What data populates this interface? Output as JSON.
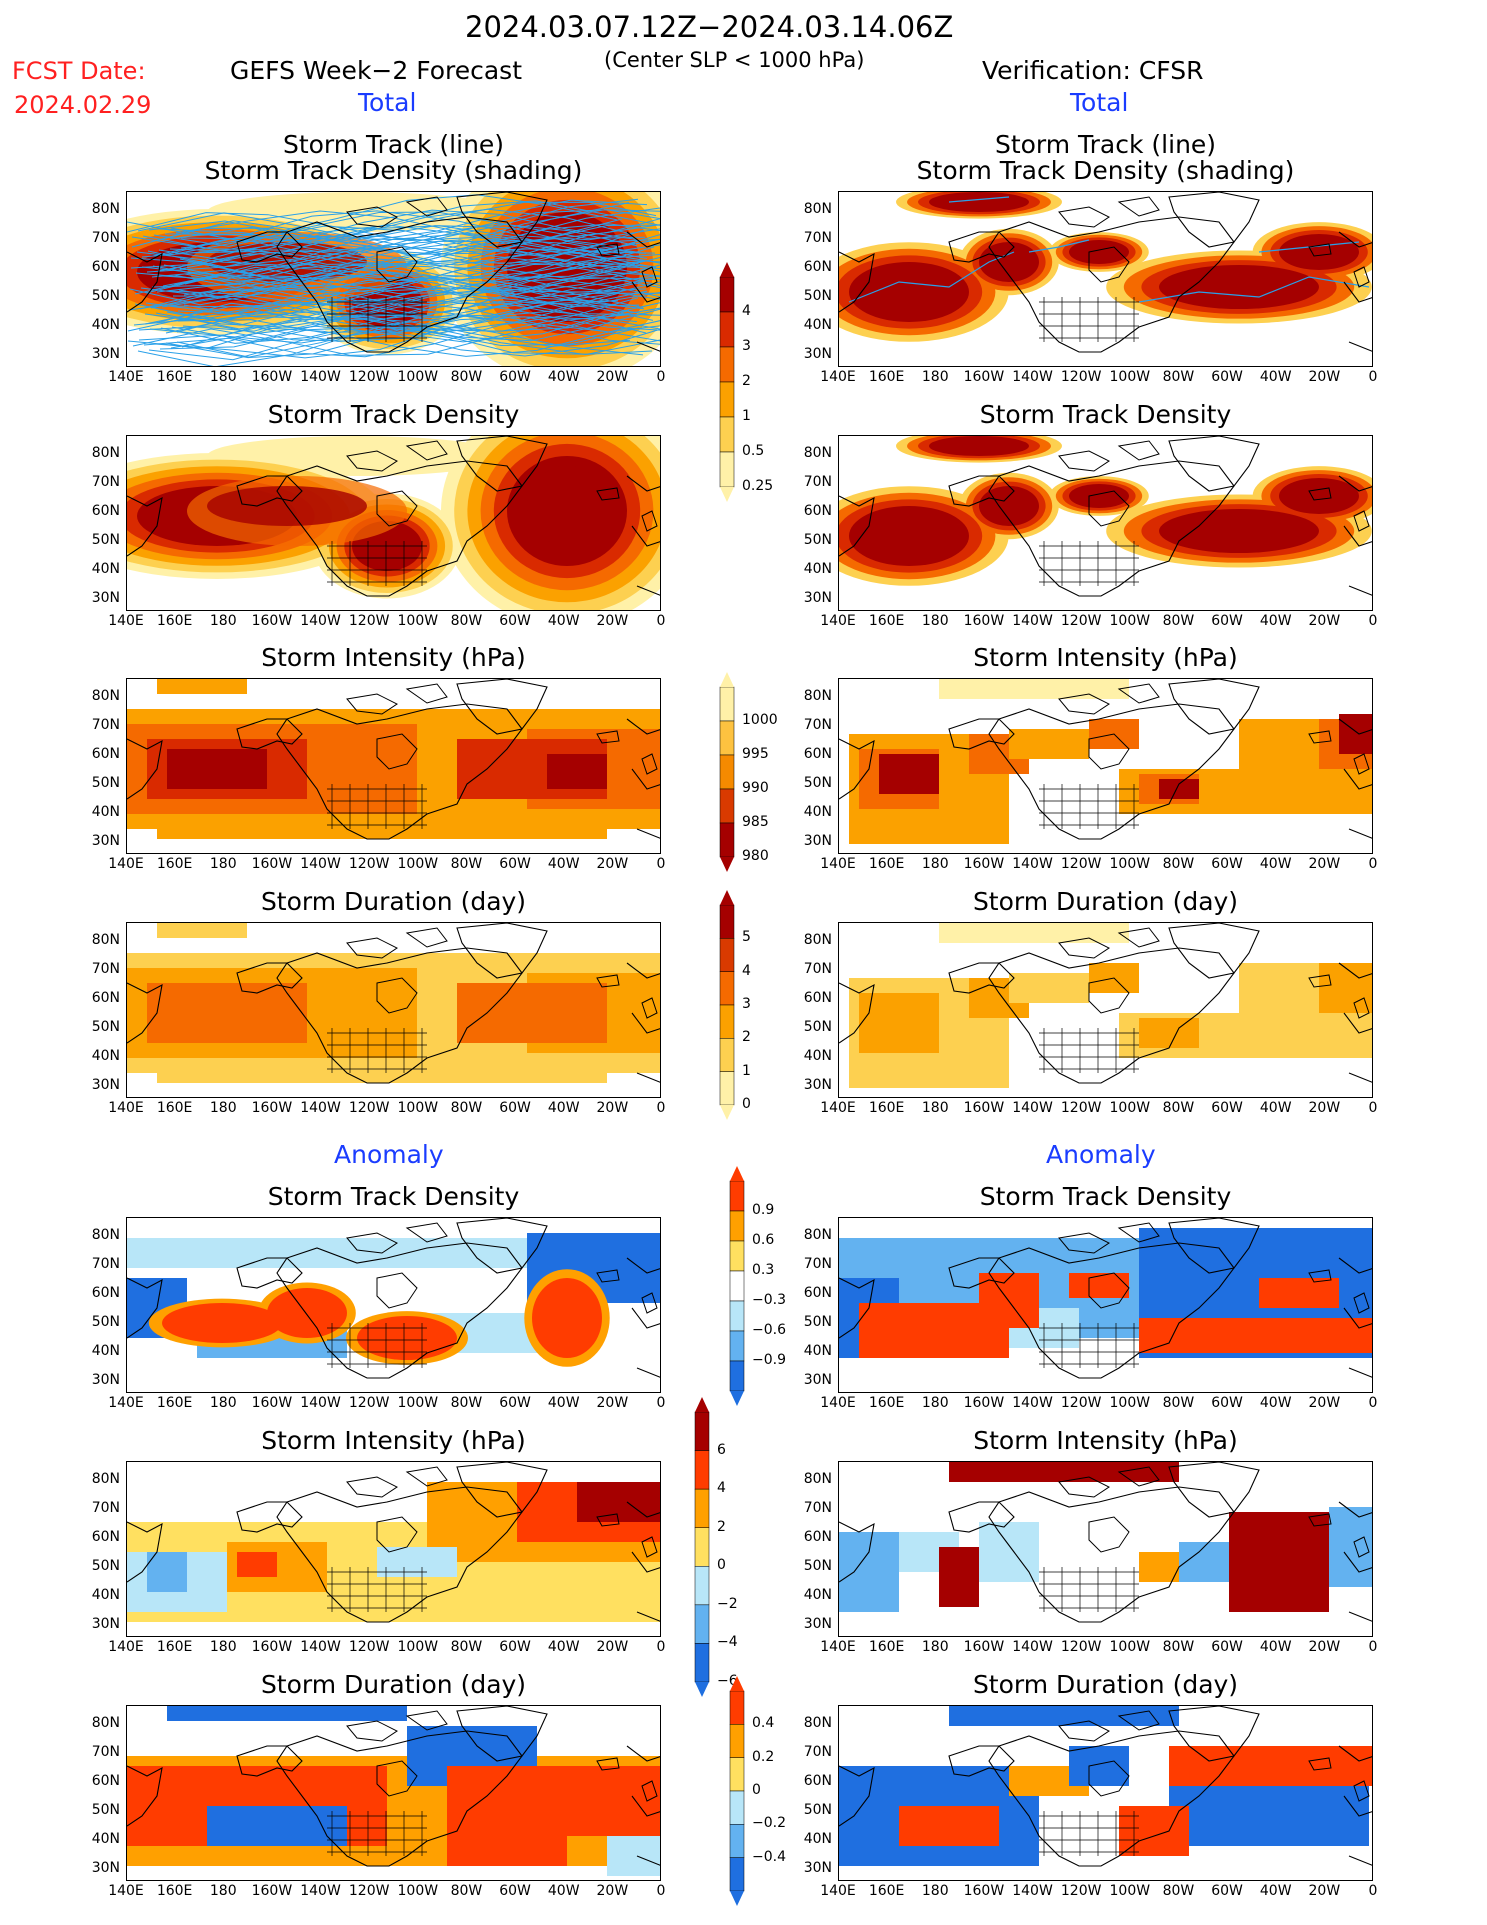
{
  "header": {
    "date_range": "2024.03.07.12Z−2024.03.14.06Z",
    "criteria": "(Center SLP < 1000 hPa)",
    "fcst_label": "FCST Date:",
    "fcst_date": "2024.02.29",
    "left_title": "GEFS Week−2 Forecast",
    "right_title": "Verification: CFSR",
    "total_label": "Total",
    "anomaly_label": "Anomaly"
  },
  "panel_titles": {
    "track_line": "Storm Track (line)",
    "track_shading": "Storm Track Density (shading)",
    "density": "Storm Track Density",
    "intensity": "Storm Intensity (hPa)",
    "duration": "Storm Duration (day)"
  },
  "axes": {
    "lat_labels": [
      "80N",
      "70N",
      "60N",
      "50N",
      "40N",
      "30N"
    ],
    "lon_labels": [
      "140E",
      "160E",
      "180",
      "160W",
      "140W",
      "120W",
      "100W",
      "80W",
      "60W",
      "40W",
      "20W",
      "0"
    ]
  },
  "colorbars": {
    "density_total": {
      "labels": [
        "4",
        "3",
        "2",
        "1",
        "0.5",
        "0.25"
      ],
      "colors": [
        "#a50000",
        "#d92a00",
        "#f56a00",
        "#fba100",
        "#fdd050",
        "#fff1a8"
      ]
    },
    "intensity_total": {
      "labels": [
        "1000",
        "995",
        "990",
        "985",
        "980"
      ],
      "colors": [
        "#fff1a8",
        "#fdc240",
        "#f58a00",
        "#d93a00",
        "#a50000"
      ]
    },
    "duration_total": {
      "labels": [
        "5",
        "4",
        "3",
        "2",
        "1",
        "0"
      ],
      "colors": [
        "#a50000",
        "#d93a00",
        "#f56a00",
        "#fba100",
        "#fdd050",
        "#fff1a8"
      ]
    },
    "density_anom": {
      "labels": [
        "0.9",
        "0.6",
        "0.3",
        "−0.3",
        "−0.6",
        "−0.9"
      ],
      "colors": [
        "#ff3c00",
        "#ffa000",
        "#ffe060",
        "#ffffff",
        "#b8e6f8",
        "#63b2f0",
        "#1f6fe0"
      ]
    },
    "intensity_anom": {
      "labels": [
        "6",
        "4",
        "2",
        "0",
        "−2",
        "−4",
        "−6"
      ],
      "colors": [
        "#a50000",
        "#ff3c00",
        "#ffa000",
        "#ffe060",
        "#b8e6f8",
        "#63b2f0",
        "#1f6fe0"
      ]
    },
    "duration_anom": {
      "labels": [
        "0.4",
        "0.2",
        "0",
        "−0.2",
        "−0.4"
      ],
      "colors": [
        "#ff3c00",
        "#ffa000",
        "#ffe060",
        "#b8e6f8",
        "#63b2f0",
        "#1f6fe0"
      ]
    }
  },
  "palette": {
    "d1": "#fff1a8",
    "d2": "#fdd050",
    "d3": "#fba100",
    "d4": "#f56a00",
    "d5": "#d92a00",
    "d6": "#a50000",
    "a_blue1": "#b8e6f8",
    "a_blue2": "#63b2f0",
    "a_blue3": "#1f6fe0",
    "a_red1": "#ffe060",
    "a_red2": "#ffa000",
    "a_red3": "#ff3c00",
    "a_red4": "#a50000",
    "track": "#2aa0e8"
  }
}
